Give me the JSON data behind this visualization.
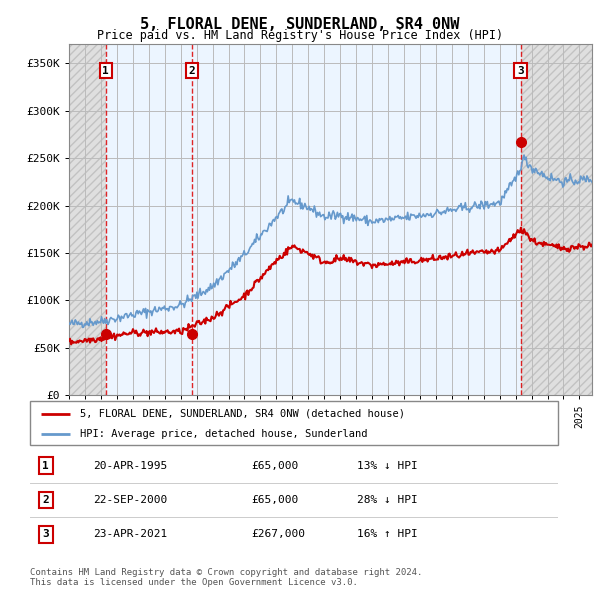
{
  "title1": "5, FLORAL DENE, SUNDERLAND, SR4 0NW",
  "title2": "Price paid vs. HM Land Registry's House Price Index (HPI)",
  "ylim": [
    0,
    370000
  ],
  "yticks": [
    0,
    50000,
    100000,
    150000,
    200000,
    250000,
    300000,
    350000
  ],
  "ytick_labels": [
    "£0",
    "£50K",
    "£100K",
    "£150K",
    "£200K",
    "£250K",
    "£300K",
    "£350K"
  ],
  "xlim_start": 1993.0,
  "xlim_end": 2025.8,
  "hpi_color": "#6699cc",
  "price_color": "#cc0000",
  "sale_marker_color": "#cc0000",
  "transaction_dates": [
    1995.3,
    2000.72,
    2021.31
  ],
  "transaction_prices": [
    65000,
    65000,
    267000
  ],
  "transaction_labels": [
    "1",
    "2",
    "3"
  ],
  "legend_label_price": "5, FLORAL DENE, SUNDERLAND, SR4 0NW (detached house)",
  "legend_label_hpi": "HPI: Average price, detached house, Sunderland",
  "table_data": [
    [
      "1",
      "20-APR-1995",
      "£65,000",
      "13% ↓ HPI"
    ],
    [
      "2",
      "22-SEP-2000",
      "£65,000",
      "28% ↓ HPI"
    ],
    [
      "3",
      "23-APR-2021",
      "£267,000",
      "16% ↑ HPI"
    ]
  ],
  "footer": "Contains HM Land Registry data © Crown copyright and database right 2024.\nThis data is licensed under the Open Government Licence v3.0.",
  "grid_color": "#bbbbbb"
}
